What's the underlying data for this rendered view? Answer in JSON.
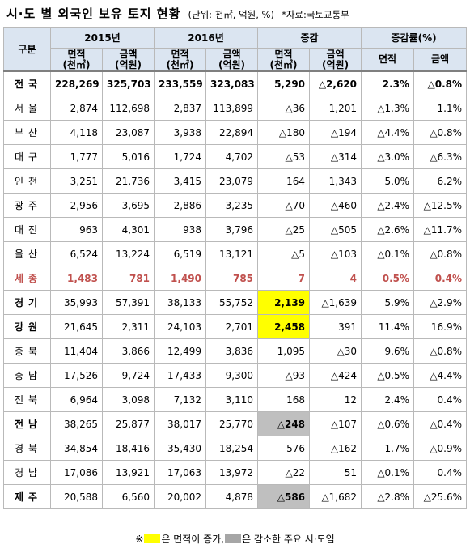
{
  "title": {
    "main": "시·도 별 외국인 보유 토지 현황",
    "unit": "(단위: 천㎡, 억원, %)",
    "source": "*자료:국토교통부"
  },
  "header": {
    "region": "구분",
    "groups": [
      "2015년",
      "2016년",
      "증감",
      "증감률(%)"
    ],
    "sub": [
      [
        "면적",
        "(천㎡)"
      ],
      [
        "금액",
        "(억원)"
      ],
      [
        "면적",
        "(천㎡)"
      ],
      [
        "금액",
        "(억원)"
      ],
      [
        "면적",
        "(천㎡)"
      ],
      [
        "금액",
        "(억원)"
      ],
      [
        "면적",
        ""
      ],
      [
        "금액",
        ""
      ]
    ]
  },
  "rows": [
    {
      "region": "전국",
      "v": [
        "228,269",
        "325,703",
        "233,559",
        "323,083",
        "5,290",
        "△2,620",
        "2.3%",
        "△0.8%"
      ],
      "style": "bold",
      "hl": ""
    },
    {
      "region": "서울",
      "v": [
        "2,874",
        "112,698",
        "2,837",
        "113,899",
        "△36",
        "1,201",
        "△1.3%",
        "1.1%"
      ],
      "style": "",
      "hl": ""
    },
    {
      "region": "부산",
      "v": [
        "4,118",
        "23,087",
        "3,938",
        "22,894",
        "△180",
        "△194",
        "△4.4%",
        "△0.8%"
      ],
      "style": "",
      "hl": ""
    },
    {
      "region": "대구",
      "v": [
        "1,777",
        "5,016",
        "1,724",
        "4,702",
        "△53",
        "△314",
        "△3.0%",
        "△6.3%"
      ],
      "style": "",
      "hl": ""
    },
    {
      "region": "인천",
      "v": [
        "3,251",
        "21,736",
        "3,415",
        "23,079",
        "164",
        "1,343",
        "5.0%",
        "6.2%"
      ],
      "style": "",
      "hl": ""
    },
    {
      "region": "광주",
      "v": [
        "2,956",
        "3,695",
        "2,886",
        "3,235",
        "△70",
        "△460",
        "△2.4%",
        "△12.5%"
      ],
      "style": "",
      "hl": ""
    },
    {
      "region": "대전",
      "v": [
        "963",
        "4,301",
        "938",
        "3,796",
        "△25",
        "△505",
        "△2.6%",
        "△11.7%"
      ],
      "style": "",
      "hl": ""
    },
    {
      "region": "울산",
      "v": [
        "6,524",
        "13,224",
        "6,519",
        "13,121",
        "△5",
        "△103",
        "△0.1%",
        "△0.8%"
      ],
      "style": "",
      "hl": ""
    },
    {
      "region": "세종",
      "v": [
        "1,483",
        "781",
        "1,490",
        "785",
        "7",
        "4",
        "0.5%",
        "0.4%"
      ],
      "style": "red",
      "hl": ""
    },
    {
      "region": "경기",
      "v": [
        "35,993",
        "57,391",
        "38,133",
        "55,752",
        "2,139",
        "△1,639",
        "5.9%",
        "△2.9%"
      ],
      "style": "boldname",
      "hl": "yellow"
    },
    {
      "region": "강원",
      "v": [
        "21,645",
        "2,311",
        "24,103",
        "2,701",
        "2,458",
        "391",
        "11.4%",
        "16.9%"
      ],
      "style": "boldname",
      "hl": "yellow"
    },
    {
      "region": "충북",
      "v": [
        "11,404",
        "3,866",
        "12,499",
        "3,836",
        "1,095",
        "△30",
        "9.6%",
        "△0.8%"
      ],
      "style": "",
      "hl": ""
    },
    {
      "region": "충남",
      "v": [
        "17,526",
        "9,724",
        "17,433",
        "9,300",
        "△93",
        "△424",
        "△0.5%",
        "△4.4%"
      ],
      "style": "",
      "hl": ""
    },
    {
      "region": "전북",
      "v": [
        "6,964",
        "3,098",
        "7,132",
        "3,110",
        "168",
        "12",
        "2.4%",
        "0.4%"
      ],
      "style": "",
      "hl": ""
    },
    {
      "region": "전남",
      "v": [
        "38,265",
        "25,877",
        "38,017",
        "25,770",
        "△248",
        "△107",
        "△0.6%",
        "△0.4%"
      ],
      "style": "boldname",
      "hl": "gray"
    },
    {
      "region": "경북",
      "v": [
        "34,854",
        "18,416",
        "35,430",
        "18,254",
        "576",
        "△162",
        "1.7%",
        "△0.9%"
      ],
      "style": "",
      "hl": ""
    },
    {
      "region": "경남",
      "v": [
        "17,086",
        "13,921",
        "17,063",
        "13,972",
        "△22",
        "51",
        "△0.1%",
        "0.4%"
      ],
      "style": "",
      "hl": ""
    },
    {
      "region": "제주",
      "v": [
        "20,588",
        "6,560",
        "20,002",
        "4,878",
        "△586",
        "△1,682",
        "△2.8%",
        "△25.6%"
      ],
      "style": "boldname",
      "hl": "gray"
    }
  ],
  "footer": {
    "prefix": "※",
    "part1": "은 면적이 증가,",
    "part2": "은 감소한 주요 시·도임",
    "colors": {
      "increase": "#ffff00",
      "decrease": "#a6a6a6"
    }
  }
}
